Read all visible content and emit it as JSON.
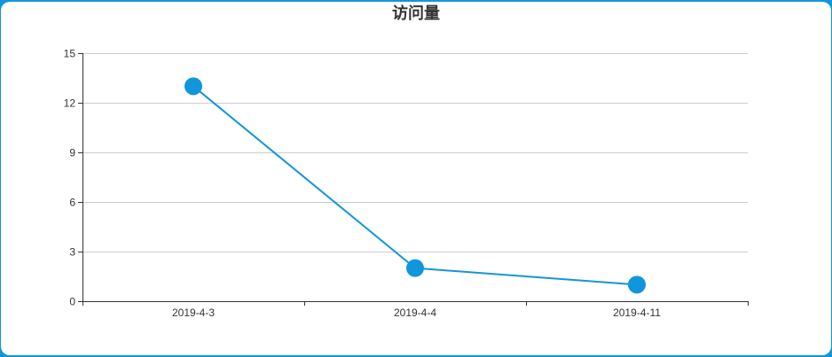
{
  "colors": {
    "frame": "#1296db",
    "series": "#1296db",
    "grid": "#cccccc",
    "axis": "#333333"
  },
  "chart_data": {
    "type": "line",
    "title": "访问量",
    "xlabel": "",
    "ylabel": "",
    "categories": [
      "2019-4-3",
      "2019-4-4",
      "2019-4-11"
    ],
    "series": [
      {
        "values": [
          13,
          2,
          1
        ]
      }
    ],
    "ylim": [
      0,
      15
    ],
    "yticks": [
      0,
      3,
      6,
      9,
      12,
      15
    ],
    "grid": true,
    "legend": "none"
  }
}
